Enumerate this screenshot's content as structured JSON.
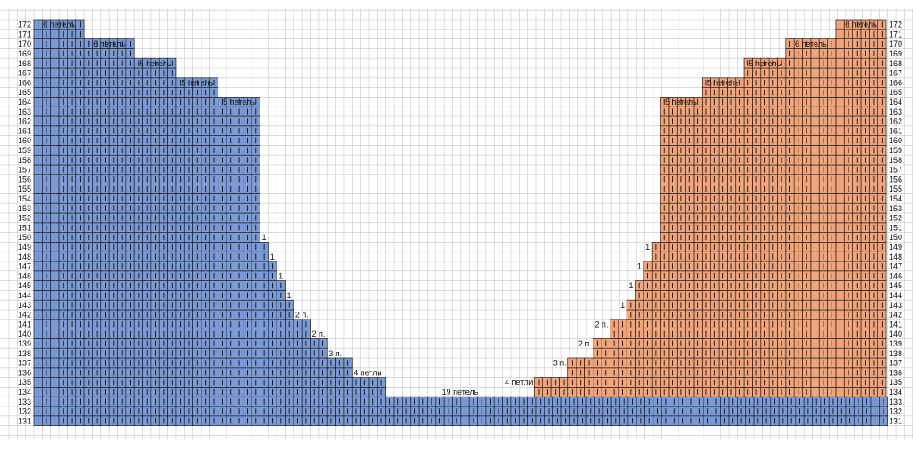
{
  "chart_data": {
    "type": "knitting-chart",
    "rows": {
      "min": 131,
      "max": 172
    },
    "colors": {
      "grid": "#c8c8c8",
      "cell_border": "#1e1e1e",
      "stitch_mark": "#111111",
      "left_piece": "#7b9bd6",
      "right_piece": "#f2a57a",
      "bridge": "#7b9bd6"
    },
    "pieces": [
      {
        "side": "left",
        "color": "#7b9bd6",
        "rows": [
          {
            "row": 131,
            "stitches": 84
          },
          {
            "row": 132,
            "stitches": 84
          },
          {
            "row": 133,
            "stitches": 84
          },
          {
            "row": 134,
            "stitches": 42
          },
          {
            "row": 135,
            "stitches": 42
          },
          {
            "row": 136,
            "stitches": 38
          },
          {
            "row": 137,
            "stitches": 38
          },
          {
            "row": 138,
            "stitches": 35
          },
          {
            "row": 139,
            "stitches": 35
          },
          {
            "row": 140,
            "stitches": 33
          },
          {
            "row": 141,
            "stitches": 33
          },
          {
            "row": 142,
            "stitches": 31
          },
          {
            "row": 143,
            "stitches": 31
          },
          {
            "row": 144,
            "stitches": 30
          },
          {
            "row": 145,
            "stitches": 30
          },
          {
            "row": 146,
            "stitches": 29
          },
          {
            "row": 147,
            "stitches": 29
          },
          {
            "row": 148,
            "stitches": 28
          },
          {
            "row": 149,
            "stitches": 28
          },
          {
            "row": 150,
            "stitches": 27
          },
          {
            "row": 151,
            "stitches": 27
          },
          {
            "row": 152,
            "stitches": 27
          },
          {
            "row": 153,
            "stitches": 27
          },
          {
            "row": 154,
            "stitches": 27
          },
          {
            "row": 155,
            "stitches": 27
          },
          {
            "row": 156,
            "stitches": 27
          },
          {
            "row": 157,
            "stitches": 27
          },
          {
            "row": 158,
            "stitches": 27
          },
          {
            "row": 159,
            "stitches": 27
          },
          {
            "row": 160,
            "stitches": 27
          },
          {
            "row": 161,
            "stitches": 27
          },
          {
            "row": 162,
            "stitches": 27
          },
          {
            "row": 163,
            "stitches": 27
          },
          {
            "row": 164,
            "stitches": 27
          },
          {
            "row": 165,
            "stitches": 22
          },
          {
            "row": 166,
            "stitches": 22
          },
          {
            "row": 167,
            "stitches": 17
          },
          {
            "row": 168,
            "stitches": 17
          },
          {
            "row": 169,
            "stitches": 12
          },
          {
            "row": 170,
            "stitches": 12
          },
          {
            "row": 171,
            "stitches": 6
          },
          {
            "row": 172,
            "stitches": 6
          }
        ]
      },
      {
        "side": "right",
        "color": "#f2a57a",
        "rows": [
          {
            "row": 134,
            "stitches": 42
          },
          {
            "row": 135,
            "stitches": 42
          },
          {
            "row": 136,
            "stitches": 38
          },
          {
            "row": 137,
            "stitches": 38
          },
          {
            "row": 138,
            "stitches": 35
          },
          {
            "row": 139,
            "stitches": 35
          },
          {
            "row": 140,
            "stitches": 33
          },
          {
            "row": 141,
            "stitches": 33
          },
          {
            "row": 142,
            "stitches": 31
          },
          {
            "row": 143,
            "stitches": 31
          },
          {
            "row": 144,
            "stitches": 30
          },
          {
            "row": 145,
            "stitches": 30
          },
          {
            "row": 146,
            "stitches": 29
          },
          {
            "row": 147,
            "stitches": 29
          },
          {
            "row": 148,
            "stitches": 28
          },
          {
            "row": 149,
            "stitches": 28
          },
          {
            "row": 150,
            "stitches": 27
          },
          {
            "row": 151,
            "stitches": 27
          },
          {
            "row": 152,
            "stitches": 27
          },
          {
            "row": 153,
            "stitches": 27
          },
          {
            "row": 154,
            "stitches": 27
          },
          {
            "row": 155,
            "stitches": 27
          },
          {
            "row": 156,
            "stitches": 27
          },
          {
            "row": 157,
            "stitches": 27
          },
          {
            "row": 158,
            "stitches": 27
          },
          {
            "row": 159,
            "stitches": 27
          },
          {
            "row": 160,
            "stitches": 27
          },
          {
            "row": 161,
            "stitches": 27
          },
          {
            "row": 162,
            "stitches": 27
          },
          {
            "row": 163,
            "stitches": 27
          },
          {
            "row": 164,
            "stitches": 27
          },
          {
            "row": 165,
            "stitches": 22
          },
          {
            "row": 166,
            "stitches": 22
          },
          {
            "row": 167,
            "stitches": 17
          },
          {
            "row": 168,
            "stitches": 17
          },
          {
            "row": 169,
            "stitches": 12
          },
          {
            "row": 170,
            "stitches": 12
          },
          {
            "row": 171,
            "stitches": 6
          },
          {
            "row": 172,
            "stitches": 6
          }
        ]
      }
    ],
    "annotations_left": [
      {
        "row": 172,
        "text": "6 петель"
      },
      {
        "row": 170,
        "text": "6 петель"
      },
      {
        "row": 168,
        "text": "5 петель"
      },
      {
        "row": 166,
        "text": "5 петель"
      },
      {
        "row": 164,
        "text": "5 петель"
      },
      {
        "row": 150,
        "text": "1"
      },
      {
        "row": 148,
        "text": "1"
      },
      {
        "row": 146,
        "text": "1"
      },
      {
        "row": 144,
        "text": "1"
      },
      {
        "row": 142,
        "text": "2 п."
      },
      {
        "row": 140,
        "text": "2 п."
      },
      {
        "row": 138,
        "text": "3 п."
      },
      {
        "row": 136,
        "text": "4 петли"
      }
    ],
    "annotations_right": [
      {
        "row": 172,
        "text": "6 петель"
      },
      {
        "row": 170,
        "text": "6 петель"
      },
      {
        "row": 168,
        "text": "5 петель"
      },
      {
        "row": 166,
        "text": "5 петель"
      },
      {
        "row": 164,
        "text": "5 петель"
      },
      {
        "row": 149,
        "text": "1"
      },
      {
        "row": 147,
        "text": "1"
      },
      {
        "row": 145,
        "text": "1"
      },
      {
        "row": 143,
        "text": "1"
      },
      {
        "row": 141,
        "text": "2 п."
      },
      {
        "row": 139,
        "text": "2 п."
      },
      {
        "row": 137,
        "text": "3 п."
      },
      {
        "row": 135,
        "text": "4 петли"
      }
    ],
    "center_annotation": {
      "row": 133,
      "text": "19 петель"
    }
  }
}
